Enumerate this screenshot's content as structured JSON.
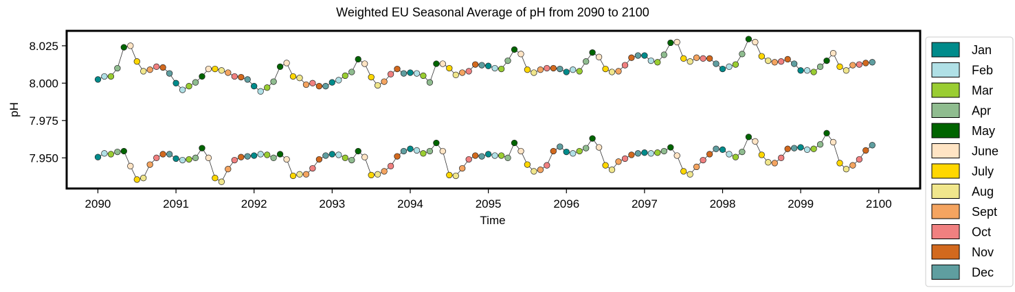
{
  "chart_data": {
    "type": "line",
    "title": "Weighted EU Seasonal Average of pH from 2090 to 2100",
    "xlabel": "Time",
    "ylabel": "pH",
    "xlim": [
      2089.6,
      2100.53
    ],
    "ylim": [
      7.9295,
      8.035
    ],
    "x_ticks": [
      2090,
      2091,
      2092,
      2093,
      2094,
      2095,
      2096,
      2097,
      2098,
      2099,
      2100
    ],
    "y_ticks": [
      7.95,
      7.975,
      8.0,
      8.025
    ],
    "y_tick_labels": [
      "7.950",
      "7.975",
      "8.000",
      "8.025"
    ],
    "grid": false,
    "legend_position": "outside-right",
    "months": [
      "Jan",
      "Feb",
      "Mar",
      "Apr",
      "May",
      "June",
      "July",
      "Aug",
      "Sept",
      "Oct",
      "Nov",
      "Dec"
    ],
    "month_colors": [
      "#008b8b",
      "#b0e0e6",
      "#9acd32",
      "#8fbc8f",
      "#006400",
      "#ffe4c4",
      "#ffd700",
      "#f0e68c",
      "#f4a460",
      "#f08080",
      "#d2691e",
      "#5f9ea0"
    ],
    "series": [
      {
        "start_year": 2090,
        "values": [
          8.0025,
          8.0045,
          8.0045,
          8.01,
          8.024,
          8.025,
          8.0145,
          8.008,
          8.009,
          8.011,
          8.0105,
          8.0065,
          8.0,
          7.9955,
          7.998,
          8.0005,
          8.0045,
          8.0095,
          8.0095,
          8.0085,
          8.007,
          8.0045,
          8.004,
          8.0025,
          7.998,
          7.9945,
          7.997,
          8.001,
          8.011,
          8.0135,
          8.0045,
          8.0035,
          7.999,
          8.0,
          7.998,
          7.998,
          8.0005,
          8.002,
          8.005,
          8.0075,
          8.016,
          8.013,
          8.004,
          7.9985,
          8.001,
          8.006,
          8.0095,
          8.0065,
          8.007,
          8.0065,
          8.005,
          8.0005,
          8.013,
          8.013,
          8.01,
          8.0055,
          8.007,
          8.008,
          8.0125,
          8.012,
          8.0115,
          8.01,
          8.0095,
          8.015,
          8.0225,
          8.0195,
          8.009,
          8.007,
          8.009,
          8.01,
          8.01,
          8.0095,
          8.0075,
          8.009,
          8.008,
          8.0145,
          8.0205,
          8.0175,
          8.0095,
          8.0075,
          8.008,
          8.012,
          8.017,
          8.0185,
          8.0185,
          8.015,
          8.014,
          8.019,
          8.027,
          8.0275,
          8.0165,
          8.0145,
          8.017,
          8.0165,
          8.0165,
          8.013,
          8.0095,
          8.011,
          8.0125,
          8.0195,
          8.0295,
          8.0275,
          8.018,
          8.015,
          8.014,
          8.0145,
          8.016,
          8.013,
          8.0085,
          8.0085,
          8.0075,
          8.011,
          8.015,
          8.02,
          8.011,
          8.0085,
          8.012,
          8.0125,
          8.0135,
          8.014
        ]
      },
      {
        "start_year": 2090,
        "values": [
          7.9505,
          7.953,
          7.9525,
          7.954,
          7.9545,
          7.9445,
          7.9355,
          7.9365,
          7.9455,
          7.95,
          7.9525,
          7.9525,
          7.9495,
          7.9485,
          7.949,
          7.95,
          7.9565,
          7.95,
          7.9365,
          7.934,
          7.9425,
          7.9485,
          7.9505,
          7.951,
          7.9515,
          7.9525,
          7.952,
          7.95,
          7.9525,
          7.949,
          7.938,
          7.939,
          7.939,
          7.943,
          7.949,
          7.9515,
          7.9525,
          7.952,
          7.95,
          7.9485,
          7.9545,
          7.9505,
          7.9385,
          7.939,
          7.941,
          7.9445,
          7.951,
          7.9545,
          7.956,
          7.955,
          7.953,
          7.9545,
          7.96,
          7.9545,
          7.9385,
          7.938,
          7.943,
          7.949,
          7.9515,
          7.951,
          7.9525,
          7.9515,
          7.9515,
          7.95,
          7.96,
          7.9545,
          7.9455,
          7.941,
          7.942,
          7.945,
          7.9545,
          7.9575,
          7.954,
          7.953,
          7.9545,
          7.9565,
          7.963,
          7.957,
          7.945,
          7.942,
          7.9475,
          7.9495,
          7.952,
          7.953,
          7.9535,
          7.953,
          7.9535,
          7.9545,
          7.957,
          7.9515,
          7.941,
          7.939,
          7.944,
          7.9485,
          7.9525,
          7.956,
          7.9555,
          7.9525,
          7.9505,
          7.954,
          7.964,
          7.961,
          7.952,
          7.947,
          7.9465,
          7.95,
          7.956,
          7.9565,
          7.957,
          7.9555,
          7.956,
          7.959,
          7.9665,
          7.9605,
          7.9465,
          7.9425,
          7.945,
          7.949,
          7.955,
          7.9585
        ]
      }
    ]
  }
}
